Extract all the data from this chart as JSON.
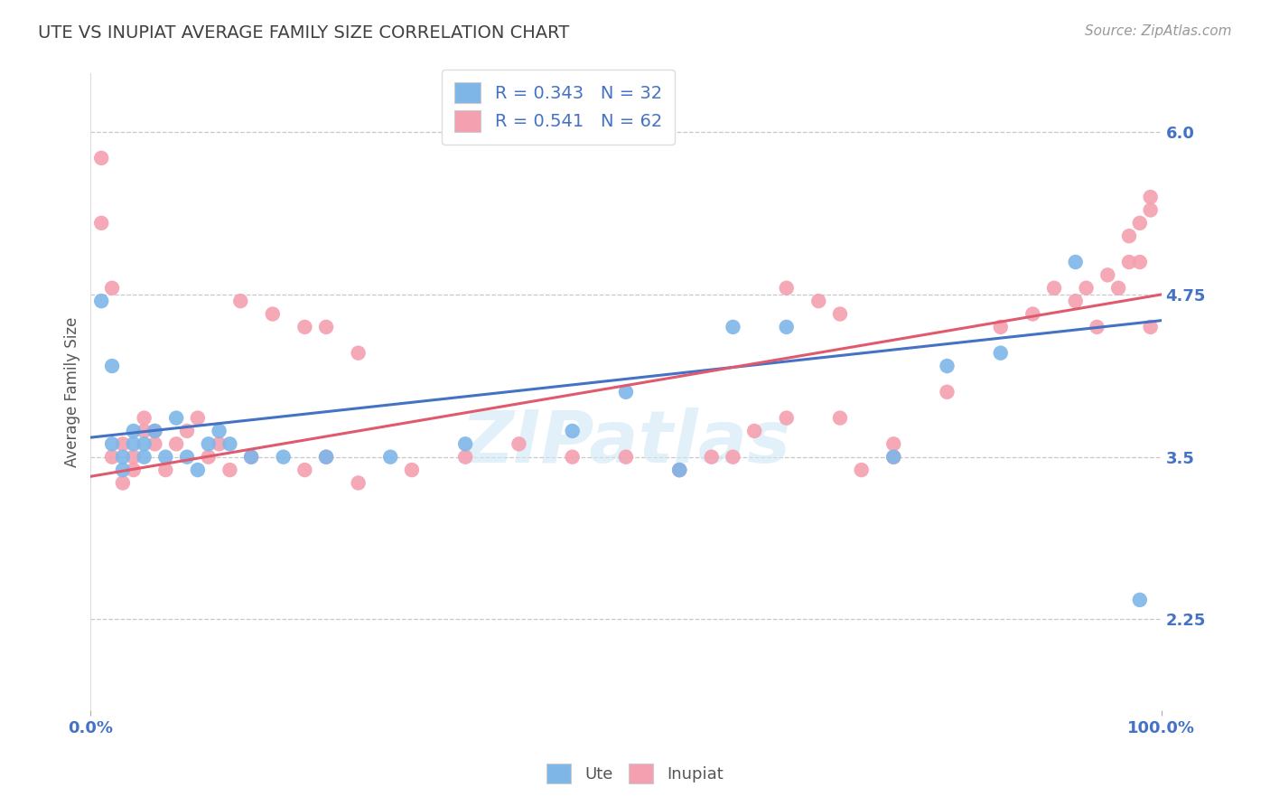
{
  "title": "UTE VS INUPIAT AVERAGE FAMILY SIZE CORRELATION CHART",
  "source_text": "Source: ZipAtlas.com",
  "ylabel": "Average Family Size",
  "watermark": "ZIPatlas",
  "xlim": [
    0.0,
    100.0
  ],
  "ylim": [
    1.55,
    6.45
  ],
  "yticks": [
    2.25,
    3.5,
    4.75,
    6.0
  ],
  "xtick_labels": [
    "0.0%",
    "100.0%"
  ],
  "ute_color": "#7EB6E8",
  "inupiat_color": "#F4A0B0",
  "ute_line_color": "#4472C4",
  "inupiat_line_color": "#E05A6E",
  "R_ute": 0.343,
  "N_ute": 32,
  "R_inupiat": 0.541,
  "N_inupiat": 62,
  "legend_text_color": "#4472C4",
  "title_color": "#404040",
  "axis_label_color": "#4472C4",
  "grid_color": "#C8C8C8",
  "background_color": "#FFFFFF",
  "ute_x": [
    1,
    2,
    2,
    3,
    3,
    4,
    4,
    5,
    5,
    6,
    7,
    8,
    9,
    10,
    11,
    12,
    13,
    15,
    18,
    22,
    28,
    35,
    45,
    50,
    55,
    60,
    65,
    75,
    80,
    85,
    92,
    98
  ],
  "ute_y": [
    4.7,
    4.2,
    3.6,
    3.5,
    3.4,
    3.7,
    3.6,
    3.6,
    3.5,
    3.7,
    3.5,
    3.8,
    3.5,
    3.4,
    3.6,
    3.7,
    3.6,
    3.5,
    3.5,
    3.5,
    3.5,
    3.6,
    3.7,
    4.0,
    3.4,
    4.5,
    4.5,
    3.5,
    4.2,
    4.3,
    5.0,
    2.4
  ],
  "inupiat_x": [
    1,
    1,
    2,
    2,
    3,
    3,
    4,
    4,
    5,
    5,
    6,
    6,
    7,
    8,
    9,
    10,
    11,
    12,
    13,
    14,
    15,
    17,
    20,
    22,
    25,
    30,
    35,
    40,
    45,
    50,
    55,
    60,
    65,
    70,
    75,
    80,
    85,
    88,
    90,
    92,
    93,
    94,
    95,
    96,
    97,
    97,
    98,
    98,
    99,
    99,
    99,
    20,
    22,
    25,
    55,
    58,
    62,
    65,
    68,
    70,
    72,
    75
  ],
  "inupiat_y": [
    5.8,
    5.3,
    4.8,
    3.5,
    3.6,
    3.3,
    3.5,
    3.4,
    3.8,
    3.7,
    3.6,
    3.7,
    3.4,
    3.6,
    3.7,
    3.8,
    3.5,
    3.6,
    3.4,
    4.7,
    3.5,
    4.6,
    4.5,
    4.5,
    4.3,
    3.4,
    3.5,
    3.6,
    3.5,
    3.5,
    3.4,
    3.5,
    3.8,
    3.8,
    3.6,
    4.0,
    4.5,
    4.6,
    4.8,
    4.7,
    4.8,
    4.5,
    4.9,
    4.8,
    5.0,
    5.2,
    5.0,
    5.3,
    5.5,
    5.4,
    4.5,
    3.4,
    3.5,
    3.3,
    3.4,
    3.5,
    3.7,
    4.8,
    4.7,
    4.6,
    3.4,
    3.5
  ]
}
